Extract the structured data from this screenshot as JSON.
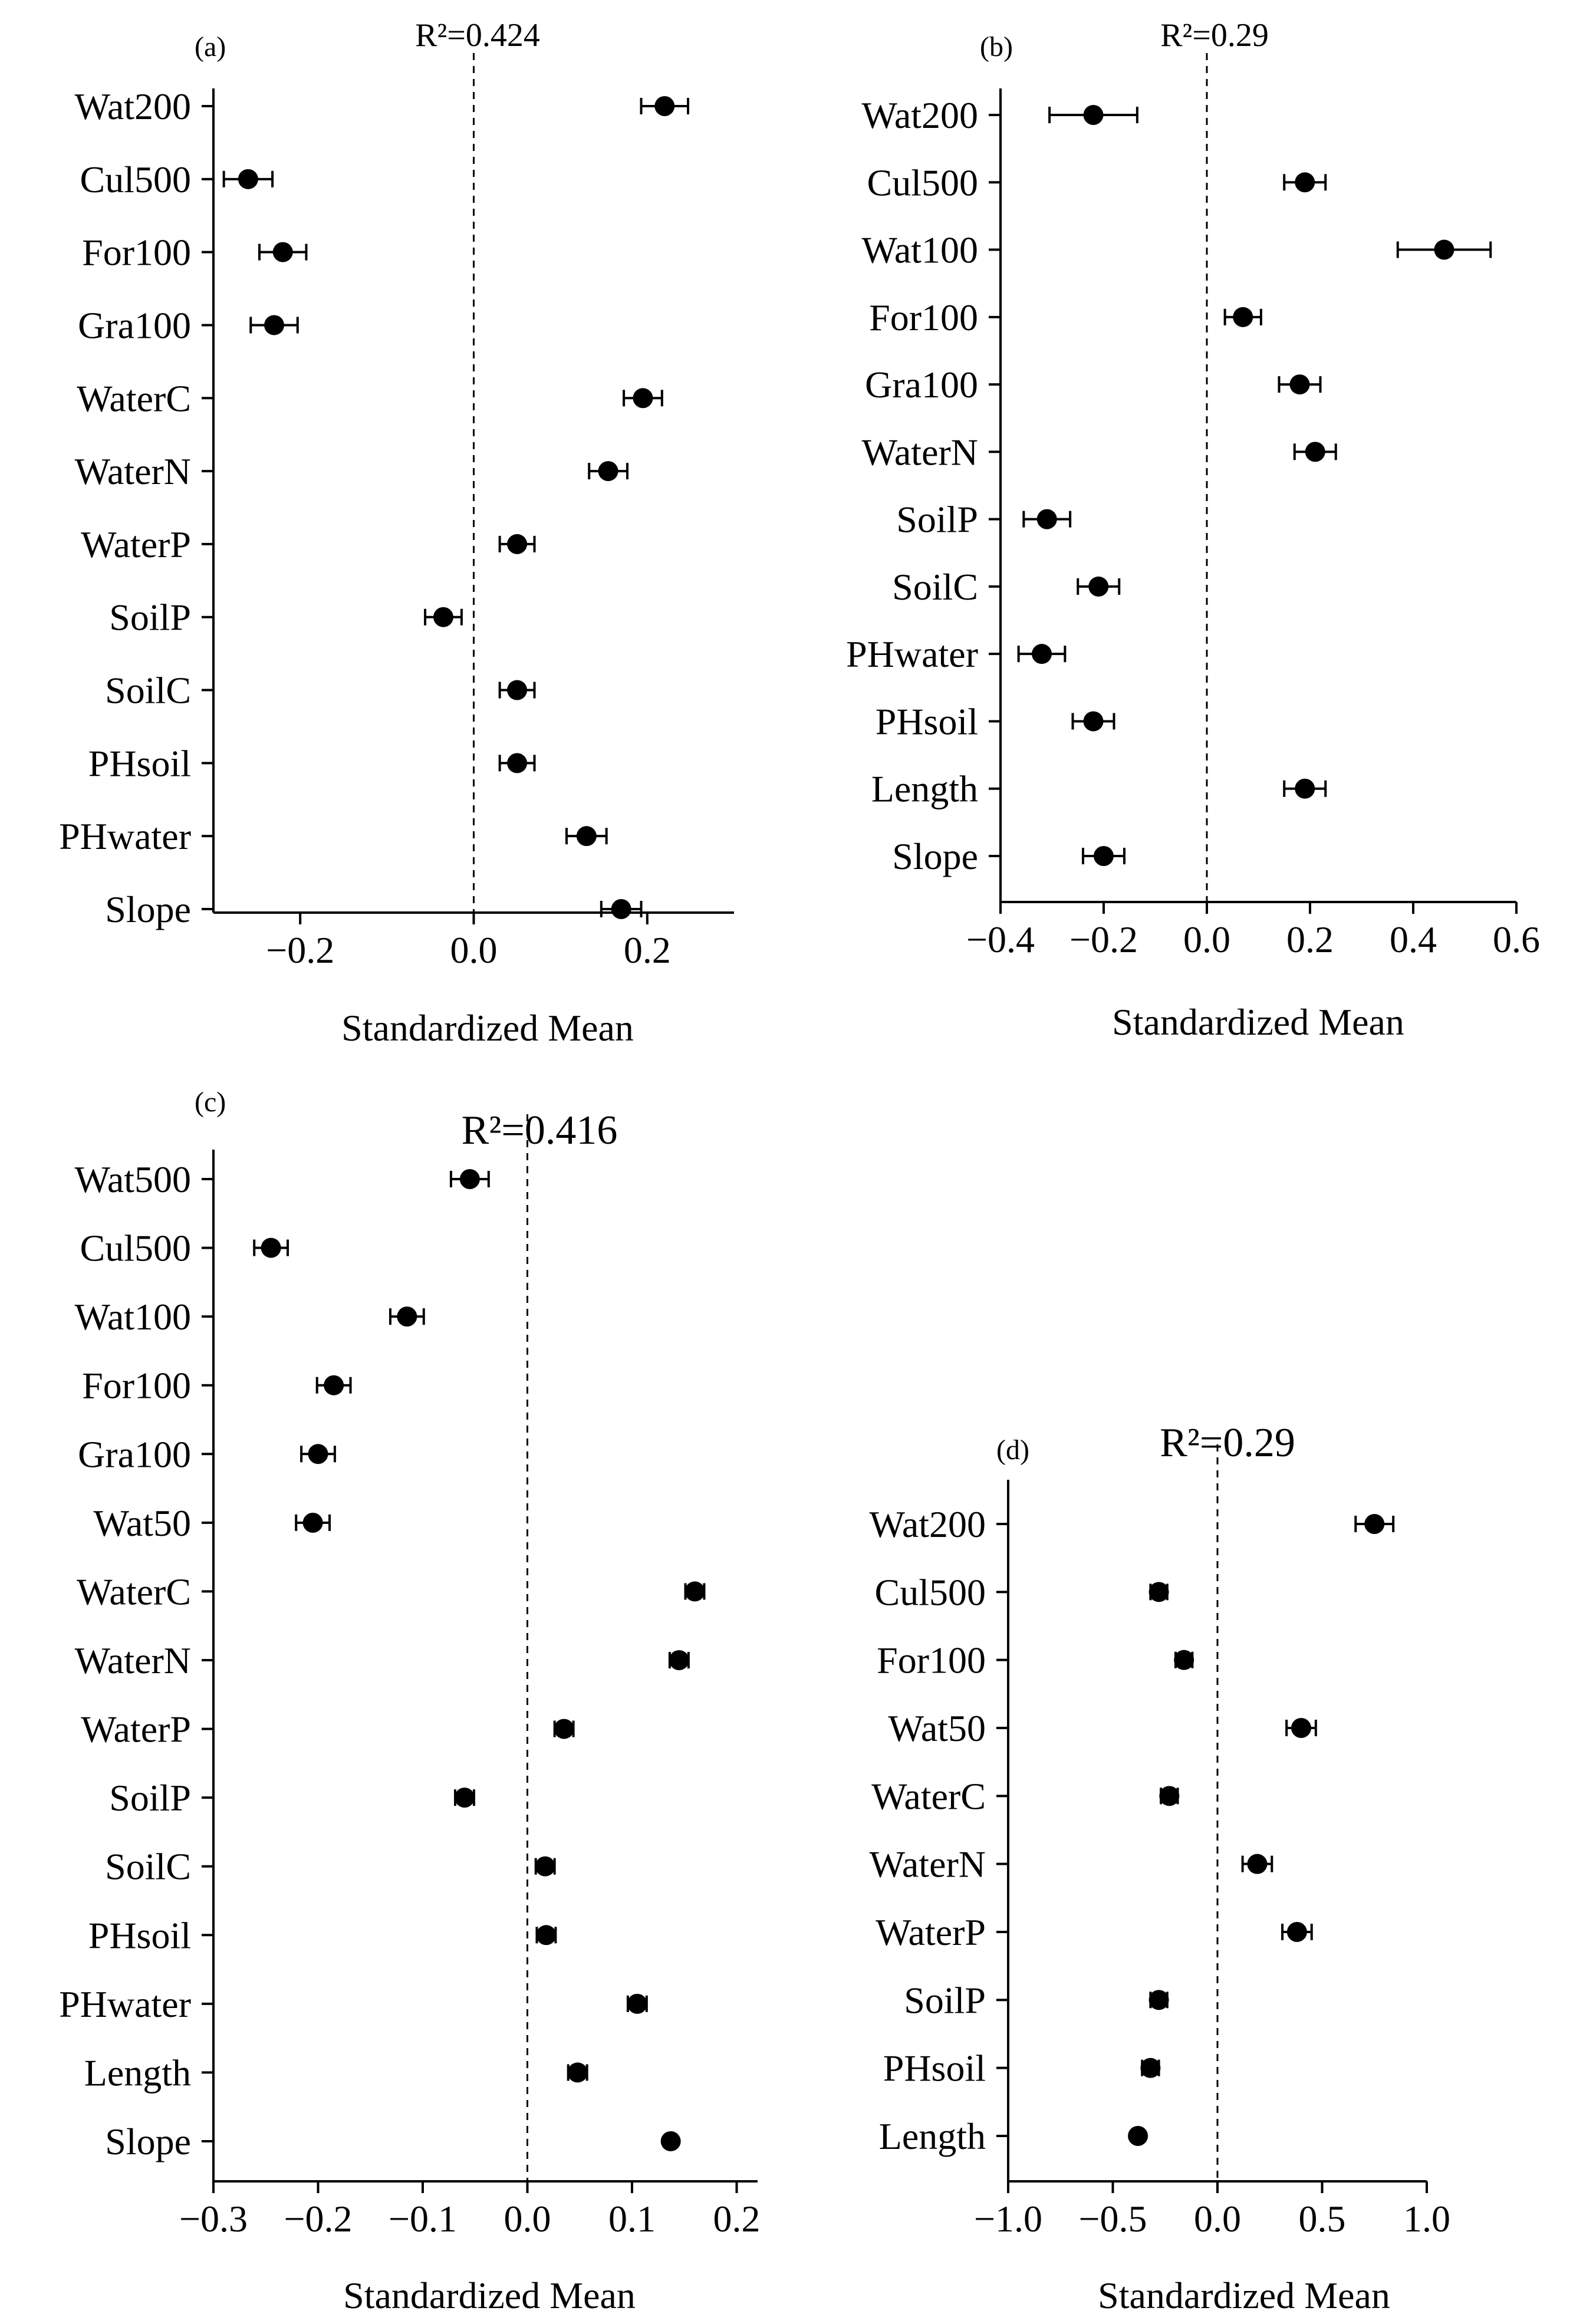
{
  "colors": {
    "ink": "#000000",
    "background": "#ffffff"
  },
  "chart_data": [
    {
      "type": "scatter",
      "panel_label": "(a)",
      "annotation": "R²=0.424",
      "xlabel": "Standardized Mean",
      "xlim": [
        -0.3,
        0.3
      ],
      "xticks": [
        -0.2,
        0.0,
        0.2
      ],
      "xtick_labels": [
        "−0.2",
        "0.0",
        "0.2"
      ],
      "reference_line": 0,
      "categories": [
        "Wat200",
        "Cul500",
        "For100",
        "Gra100",
        "WaterC",
        "WaterN",
        "WaterP",
        "SoilP",
        "SoilC",
        "PHsoil",
        "PHwater",
        "Slope"
      ],
      "values": [
        0.22,
        -0.26,
        -0.22,
        -0.23,
        0.195,
        0.155,
        0.05,
        -0.035,
        0.05,
        0.05,
        0.13,
        0.17
      ],
      "errors": [
        0.027,
        0.028,
        0.027,
        0.027,
        0.022,
        0.022,
        0.02,
        0.021,
        0.02,
        0.02,
        0.023,
        0.023
      ]
    },
    {
      "type": "scatter",
      "panel_label": "(b)",
      "annotation": "R²=0.29",
      "xlabel": "Standardized Mean",
      "xlim": [
        -0.4,
        0.6
      ],
      "xticks": [
        -0.4,
        -0.2,
        0.0,
        0.2,
        0.4,
        0.6
      ],
      "xtick_labels": [
        "−0.4",
        "−0.2",
        "0.0",
        "0.2",
        "0.4",
        "0.6"
      ],
      "reference_line": 0,
      "categories": [
        "Wat200",
        "Cul500",
        "Wat100",
        "For100",
        "Gra100",
        "WaterN",
        "SoilP",
        "SoilC",
        "PHwater",
        "PHsoil",
        "Length",
        "Slope"
      ],
      "values": [
        -0.22,
        0.19,
        0.46,
        0.07,
        0.18,
        0.21,
        -0.31,
        -0.21,
        -0.32,
        -0.22,
        0.19,
        -0.2
      ],
      "errors": [
        0.085,
        0.04,
        0.09,
        0.035,
        0.04,
        0.04,
        0.045,
        0.04,
        0.045,
        0.04,
        0.04,
        0.04
      ]
    },
    {
      "type": "scatter",
      "panel_label": "(c)",
      "annotation": "R²=0.416",
      "xlabel": "Standardized Mean",
      "xlim": [
        -0.3,
        0.22
      ],
      "xticks": [
        -0.3,
        -0.2,
        -0.1,
        0.0,
        0.1,
        0.2
      ],
      "xtick_labels": [
        "−0.3",
        "−0.2",
        "−0.1",
        "0.0",
        "0.1",
        "0.2"
      ],
      "reference_line": 0,
      "categories": [
        "Wat500",
        "Cul500",
        "Wat100",
        "For100",
        "Gra100",
        "Wat50",
        "WaterC",
        "WaterN",
        "WaterP",
        "SoilP",
        "SoilC",
        "PHsoil",
        "PHwater",
        "Length",
        "Slope"
      ],
      "values": [
        -0.055,
        -0.245,
        -0.115,
        -0.185,
        -0.2,
        -0.205,
        0.16,
        0.145,
        0.035,
        -0.06,
        0.017,
        0.018,
        0.105,
        0.048,
        0.137
      ],
      "errors": [
        0.018,
        0.016,
        0.016,
        0.016,
        0.016,
        0.016,
        0.009,
        0.009,
        0.009,
        0.009,
        0.009,
        0.009,
        0.009,
        0.009,
        0.004
      ]
    },
    {
      "type": "scatter",
      "panel_label": "(d)",
      "annotation": "R²=0.29",
      "xlabel": "Standardized Mean",
      "xlim": [
        -1.0,
        1.0
      ],
      "xticks": [
        -1.0,
        -0.5,
        0.0,
        0.5,
        1.0
      ],
      "xtick_labels": [
        "−1.0",
        "−0.5",
        "0.0",
        "0.5",
        "1.0"
      ],
      "reference_line": 0,
      "categories": [
        "Wat200",
        "Cul500",
        "For100",
        "Wat50",
        "WaterC",
        "WaterN",
        "WaterP",
        "SoilP",
        "PHsoil",
        "Length"
      ],
      "values": [
        0.75,
        -0.28,
        -0.16,
        0.4,
        -0.23,
        0.19,
        0.38,
        -0.28,
        -0.32,
        -0.38
      ],
      "errors": [
        0.09,
        0.04,
        0.04,
        0.07,
        0.04,
        0.07,
        0.07,
        0.04,
        0.04,
        0.015
      ]
    }
  ]
}
